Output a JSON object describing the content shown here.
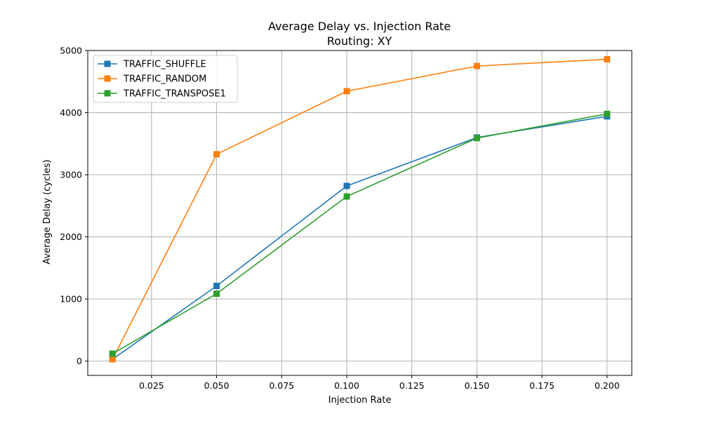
{
  "chart_data": {
    "type": "line",
    "title": "Average Delay vs. Injection Rate",
    "subtitle": "Routing: XY",
    "xlabel": "Injection Rate",
    "ylabel": "Average Delay (cycles)",
    "xlim": [
      0.0005,
      0.2095
    ],
    "ylim": [
      -230,
      5000
    ],
    "xticks": [
      0.025,
      0.05,
      0.075,
      0.1,
      0.125,
      0.15,
      0.175,
      0.2
    ],
    "xtick_labels": [
      "0.025",
      "0.050",
      "0.075",
      "0.100",
      "0.125",
      "0.150",
      "0.175",
      "0.200"
    ],
    "yticks": [
      0,
      1000,
      2000,
      3000,
      4000,
      5000
    ],
    "ytick_labels": [
      "0",
      "1000",
      "2000",
      "3000",
      "4000",
      "5000"
    ],
    "grid": true,
    "legend_position": "top-left",
    "marker": "square",
    "x": [
      0.01,
      0.05,
      0.1,
      0.15,
      0.2
    ],
    "series": [
      {
        "name": "TRAFFIC_SHUFFLE",
        "color": "#1f77b4",
        "values": [
          30,
          1210,
          2820,
          3600,
          3940
        ]
      },
      {
        "name": "TRAFFIC_RANDOM",
        "color": "#ff7f0e",
        "values": [
          30,
          3330,
          4345,
          4750,
          4860
        ]
      },
      {
        "name": "TRAFFIC_TRANSPOSE1",
        "color": "#2ca02c",
        "values": [
          120,
          1085,
          2650,
          3590,
          3980
        ]
      }
    ]
  }
}
